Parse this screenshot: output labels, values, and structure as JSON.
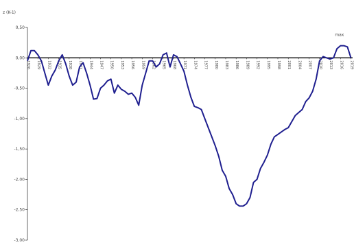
{
  "chart_data": {
    "type": "line",
    "title": "",
    "ylabel": "z (K-1)",
    "xlabel": "",
    "ylim": [
      -3.0,
      0.5
    ],
    "yticks": [
      0.5,
      0.0,
      -0.5,
      -1.0,
      -1.5,
      -2.0,
      -2.5,
      -3.0
    ],
    "ytick_labels": [
      "0,50",
      "0,00",
      "-0,50",
      "-1,00",
      "-1,50",
      "-2,00",
      "-2,50",
      "-3,00"
    ],
    "xtick_labels": [
      "1926",
      "1929",
      "1932",
      "1935",
      "1938",
      "1941",
      "1944",
      "1947",
      "1950",
      "1953",
      "1956",
      "1959",
      "1962",
      "1965",
      "1968",
      "1971",
      "1974",
      "1977",
      "1980",
      "1983",
      "1986",
      "1989",
      "1992",
      "1995",
      "1998",
      "2001",
      "2004",
      "2007",
      "2010",
      "2013",
      "2016",
      "2019"
    ],
    "xlim": [
      1926,
      2019.5
    ],
    "grid": false,
    "legend": "none",
    "annotation": "max",
    "colors": {
      "line": "#1f1f8f",
      "axis": "#000000"
    },
    "series": [
      {
        "x": [
          1926,
          1927,
          1928,
          1929,
          1930,
          1931,
          1932,
          1933,
          1934,
          1935,
          1936,
          1937,
          1938,
          1939,
          1940,
          1941,
          1942,
          1943,
          1944,
          1945,
          1946,
          1947,
          1948,
          1949,
          1950,
          1951,
          1952,
          1953,
          1954,
          1955,
          1956,
          1957,
          1958,
          1959,
          1960,
          1961,
          1962,
          1963,
          1964,
          1965,
          1966,
          1967,
          1968,
          1969,
          1970,
          1971,
          1972,
          1973,
          1974,
          1975,
          1976,
          1977,
          1978,
          1979,
          1980,
          1981,
          1982,
          1983,
          1984,
          1985,
          1986,
          1987,
          1988,
          1989,
          1990,
          1991,
          1992,
          1993,
          1994,
          1995,
          1996,
          1997,
          1998,
          1999,
          2000,
          2001,
          2002,
          2003,
          2004,
          2005,
          2006,
          2007,
          2008,
          2009,
          2010,
          2011,
          2012,
          2013,
          2014,
          2015,
          2016,
          2017,
          2018,
          2019
        ],
        "values": [
          -0.05,
          0.12,
          0.12,
          0.05,
          -0.05,
          -0.25,
          -0.45,
          -0.3,
          -0.2,
          -0.05,
          0.05,
          -0.1,
          -0.3,
          -0.45,
          -0.4,
          -0.15,
          -0.08,
          -0.25,
          -0.45,
          -0.68,
          -0.67,
          -0.5,
          -0.45,
          -0.38,
          -0.35,
          -0.58,
          -0.45,
          -0.52,
          -0.55,
          -0.6,
          -0.58,
          -0.65,
          -0.78,
          -0.45,
          -0.25,
          -0.05,
          -0.05,
          -0.15,
          -0.1,
          0.05,
          0.08,
          -0.15,
          0.05,
          0.02,
          -0.1,
          -0.22,
          -0.45,
          -0.65,
          -0.8,
          -0.82,
          -0.85,
          -1.0,
          -1.15,
          -1.3,
          -1.45,
          -1.62,
          -1.85,
          -1.95,
          -2.15,
          -2.25,
          -2.4,
          -2.44,
          -2.44,
          -2.4,
          -2.3,
          -2.05,
          -2.0,
          -1.82,
          -1.72,
          -1.6,
          -1.42,
          -1.3,
          -1.26,
          -1.22,
          -1.18,
          -1.15,
          -1.05,
          -0.95,
          -0.9,
          -0.85,
          -0.72,
          -0.66,
          -0.55,
          -0.35,
          -0.05,
          0.02,
          0.0,
          -0.02,
          0.0,
          0.15,
          0.2,
          0.2,
          0.18,
          0.0
        ]
      }
    ]
  }
}
